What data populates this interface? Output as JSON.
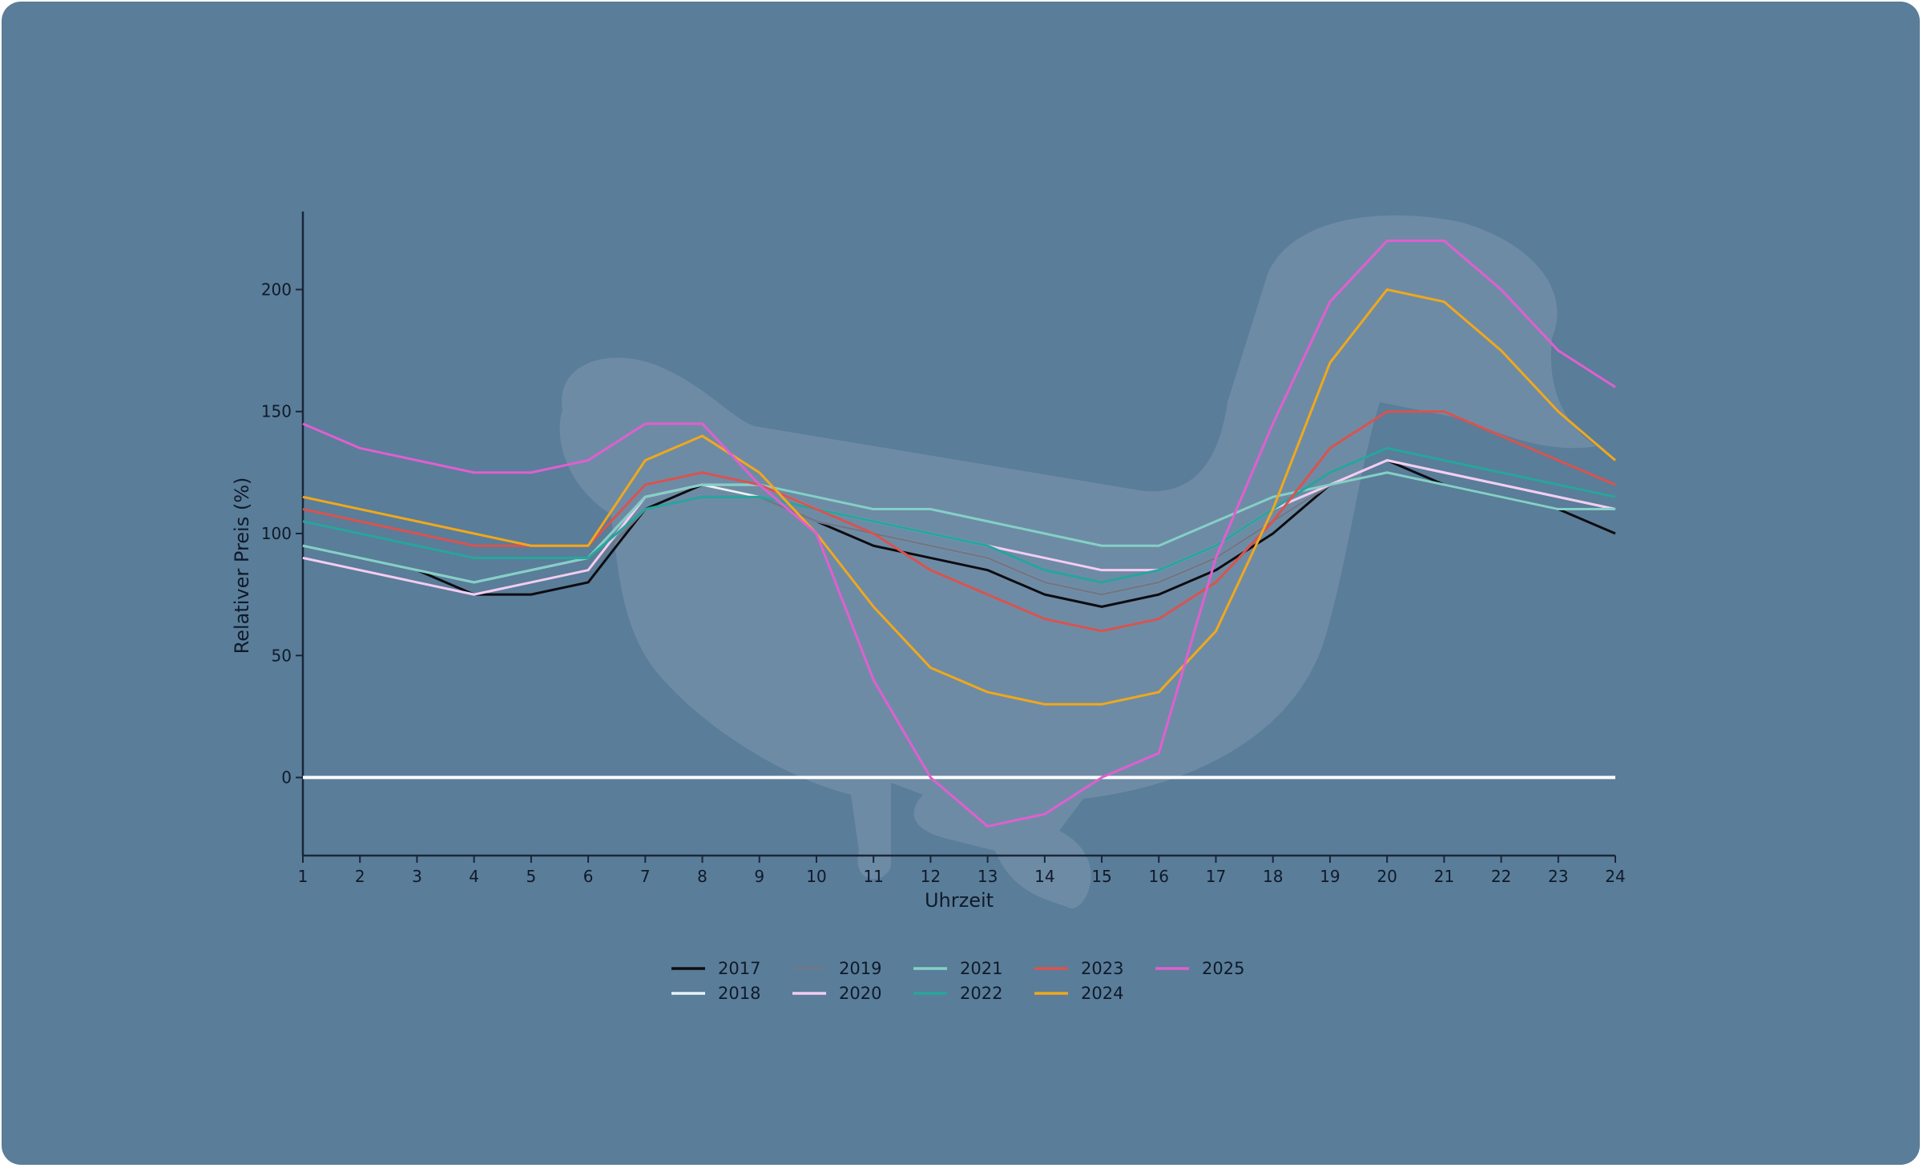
{
  "chart_data": {
    "type": "line",
    "title": "",
    "xlabel": "Uhrzeit",
    "ylabel": "Relativer Preis (%)",
    "x": [
      1,
      2,
      3,
      4,
      5,
      6,
      7,
      8,
      9,
      10,
      11,
      12,
      13,
      14,
      15,
      16,
      17,
      18,
      19,
      20,
      21,
      22,
      23,
      24
    ],
    "x_ticks": [
      "1",
      "2",
      "3",
      "4",
      "5",
      "6",
      "7",
      "8",
      "9",
      "10",
      "11",
      "12",
      "13",
      "14",
      "15",
      "16",
      "17",
      "18",
      "19",
      "20",
      "21",
      "22",
      "23",
      "24"
    ],
    "y_ticks": [
      "0",
      "50",
      "100",
      "150",
      "200"
    ],
    "xlim": [
      1,
      24
    ],
    "ylim": [
      -32,
      232
    ],
    "grid": false,
    "legend_position": "bottom-center",
    "reference_line": {
      "y": 0,
      "color": "#ffffff"
    },
    "background_color": "#5a7d99",
    "series": [
      {
        "name": "2017",
        "color": "#0c0c10",
        "values": [
          95,
          90,
          85,
          75,
          75,
          80,
          110,
          120,
          115,
          105,
          95,
          90,
          85,
          75,
          70,
          75,
          85,
          100,
          120,
          130,
          120,
          115,
          110,
          100
        ]
      },
      {
        "name": "2018",
        "color": "#e8f3f6",
        "values": [
          95,
          90,
          85,
          80,
          85,
          90,
          115,
          120,
          115,
          105,
          100,
          95,
          90,
          80,
          75,
          80,
          90,
          105,
          120,
          130,
          125,
          120,
          115,
          110
        ]
      },
      {
        "name": "2019",
        "color": "#6e7888",
        "values": [
          90,
          85,
          80,
          75,
          80,
          85,
          110,
          115,
          115,
          105,
          100,
          95,
          90,
          80,
          75,
          80,
          90,
          105,
          120,
          125,
          120,
          115,
          110,
          110
        ]
      },
      {
        "name": "2020",
        "color": "#f4cdf2",
        "values": [
          90,
          85,
          80,
          75,
          80,
          85,
          115,
          120,
          120,
          110,
          105,
          100,
          95,
          90,
          85,
          85,
          95,
          110,
          120,
          130,
          125,
          120,
          115,
          110
        ]
      },
      {
        "name": "2021",
        "color": "#84d0c6",
        "values": [
          95,
          90,
          85,
          80,
          85,
          90,
          115,
          120,
          120,
          115,
          110,
          110,
          105,
          100,
          95,
          95,
          105,
          115,
          120,
          125,
          120,
          115,
          110,
          110
        ]
      },
      {
        "name": "2022",
        "color": "#27a59c",
        "values": [
          105,
          100,
          95,
          90,
          90,
          90,
          110,
          115,
          115,
          110,
          105,
          100,
          95,
          85,
          80,
          85,
          95,
          110,
          125,
          135,
          130,
          125,
          120,
          115
        ]
      },
      {
        "name": "2023",
        "color": "#d9534f",
        "values": [
          110,
          105,
          100,
          95,
          95,
          95,
          120,
          125,
          120,
          110,
          100,
          85,
          75,
          65,
          60,
          65,
          80,
          105,
          135,
          150,
          150,
          140,
          130,
          120
        ]
      },
      {
        "name": "2024",
        "color": "#f0a81c",
        "values": [
          115,
          110,
          105,
          100,
          95,
          95,
          130,
          140,
          125,
          100,
          70,
          45,
          35,
          30,
          30,
          35,
          60,
          110,
          170,
          200,
          195,
          175,
          150,
          130
        ]
      },
      {
        "name": "2025",
        "color": "#e05fd0",
        "values": [
          145,
          135,
          130,
          125,
          125,
          130,
          145,
          145,
          120,
          100,
          40,
          0,
          -20,
          -15,
          0,
          10,
          90,
          145,
          195,
          220,
          220,
          200,
          175,
          160
        ]
      }
    ]
  }
}
